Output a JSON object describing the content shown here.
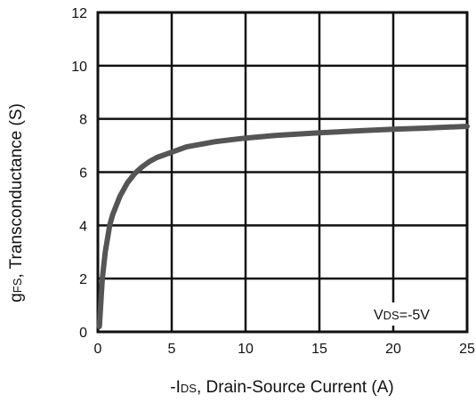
{
  "chart_data": {
    "type": "line",
    "xlabel": {
      "prefix": "-I",
      "sub": "DS",
      "rest": ", Drain-Source Current (A)"
    },
    "ylabel": {
      "main": "g",
      "sub": "FS",
      "rest": ", Transconductance (S)"
    },
    "xlim": [
      0,
      25
    ],
    "ylim": [
      0,
      12
    ],
    "x_ticks": [
      0,
      5,
      10,
      15,
      20,
      25
    ],
    "y_ticks": [
      0,
      2,
      4,
      6,
      8,
      10,
      12
    ],
    "grid": true,
    "annotation": {
      "main": "V",
      "sub": "DS",
      "rest": "=-5V"
    },
    "series": [
      {
        "x": [
          0.1,
          0.3,
          0.5,
          0.8,
          1.0,
          1.5,
          2.0,
          2.5,
          3.0,
          3.5,
          4.0,
          5.0,
          6.0,
          7.0,
          8.0,
          10.0,
          12.0,
          15.0,
          18.0,
          20.0,
          22.0,
          25.0
        ],
        "y": [
          0.2,
          2.0,
          3.0,
          4.0,
          4.4,
          5.1,
          5.6,
          5.95,
          6.2,
          6.4,
          6.55,
          6.75,
          6.95,
          7.05,
          7.15,
          7.28,
          7.38,
          7.48,
          7.56,
          7.61,
          7.65,
          7.72
        ]
      }
    ]
  }
}
